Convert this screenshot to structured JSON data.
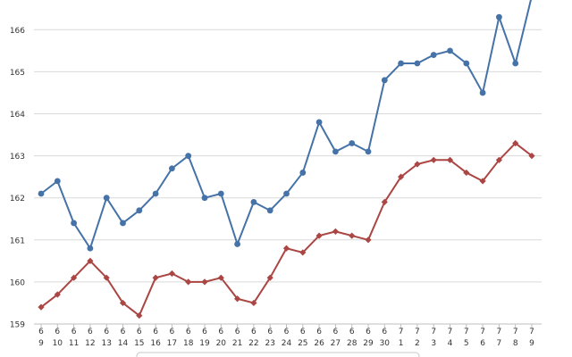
{
  "chart_data": {
    "type": "line",
    "title": "",
    "xlabel": "",
    "ylabel": "",
    "ylim": [
      159,
      166.7
    ],
    "yticks": [
      159,
      160,
      161,
      162,
      163,
      164,
      165,
      166
    ],
    "grid": true,
    "categories": [
      {
        "month": "6",
        "day": "9"
      },
      {
        "month": "6",
        "day": "10"
      },
      {
        "month": "6",
        "day": "11"
      },
      {
        "month": "6",
        "day": "12"
      },
      {
        "month": "6",
        "day": "13"
      },
      {
        "month": "6",
        "day": "14"
      },
      {
        "month": "6",
        "day": "15"
      },
      {
        "month": "6",
        "day": "16"
      },
      {
        "month": "6",
        "day": "17"
      },
      {
        "month": "6",
        "day": "18"
      },
      {
        "month": "6",
        "day": "19"
      },
      {
        "month": "6",
        "day": "20"
      },
      {
        "month": "6",
        "day": "21"
      },
      {
        "month": "6",
        "day": "22"
      },
      {
        "month": "6",
        "day": "23"
      },
      {
        "month": "6",
        "day": "24"
      },
      {
        "month": "6",
        "day": "25"
      },
      {
        "month": "6",
        "day": "26"
      },
      {
        "month": "6",
        "day": "27"
      },
      {
        "month": "6",
        "day": "28"
      },
      {
        "month": "6",
        "day": "29"
      },
      {
        "month": "6",
        "day": "30"
      },
      {
        "month": "7",
        "day": "1"
      },
      {
        "month": "7",
        "day": "2"
      },
      {
        "month": "7",
        "day": "3"
      },
      {
        "month": "7",
        "day": "4"
      },
      {
        "month": "7",
        "day": "5"
      },
      {
        "month": "7",
        "day": "6"
      },
      {
        "month": "7",
        "day": "7"
      },
      {
        "month": "7",
        "day": "8"
      },
      {
        "month": "7",
        "day": "9"
      }
    ],
    "series": [
      {
        "color": "#4572a7",
        "marker": "circle",
        "values": [
          162.1,
          162.4,
          161.4,
          160.8,
          162.0,
          161.4,
          161.7,
          162.1,
          162.7,
          163.0,
          162.0,
          162.1,
          160.9,
          161.9,
          161.7,
          162.1,
          162.6,
          163.8,
          163.1,
          163.3,
          163.1,
          164.8,
          165.2,
          165.2,
          165.4,
          165.5,
          165.2,
          164.5,
          166.3,
          165.2,
          166.8
        ]
      },
      {
        "color": "#aa4643",
        "marker": "diamond",
        "values": [
          159.4,
          159.7,
          160.1,
          160.5,
          160.1,
          159.5,
          159.2,
          160.1,
          160.2,
          160.0,
          160.0,
          160.1,
          159.6,
          159.5,
          160.1,
          160.8,
          160.7,
          161.1,
          161.2,
          161.1,
          161.0,
          161.9,
          162.5,
          162.8,
          162.9,
          162.9,
          162.6,
          162.4,
          162.9,
          163.3,
          163.0
        ]
      }
    ]
  }
}
